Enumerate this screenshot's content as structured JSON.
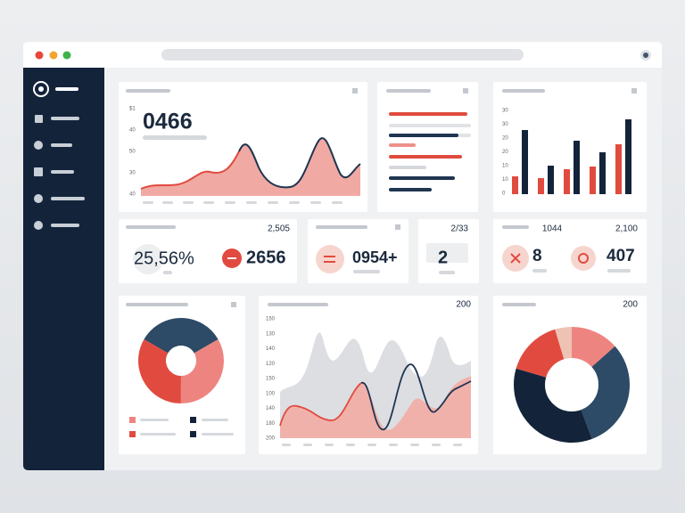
{
  "revenue": {
    "value": "0466",
    "axis": [
      "$1",
      "40",
      "50",
      "30",
      "40"
    ]
  },
  "bar_panel": {
    "axis": [
      "30",
      "30",
      "20",
      "20",
      "10",
      "10",
      "0"
    ]
  },
  "stats": {
    "first": {
      "corner": "2,505",
      "percent": "25,56%",
      "count": "2656"
    },
    "second": {
      "value": "0954+"
    },
    "third": {
      "corner": "2/33",
      "value": "2"
    },
    "fourth": {
      "left_corner": "1044",
      "corner": "2,100",
      "errors": "8",
      "count": "407"
    }
  },
  "area_panel": {
    "corner": "200",
    "axis": [
      "150",
      "130",
      "140",
      "120",
      "150",
      "100",
      "140",
      "180",
      "200"
    ]
  },
  "donut_panel": {
    "corner": "200"
  }
}
